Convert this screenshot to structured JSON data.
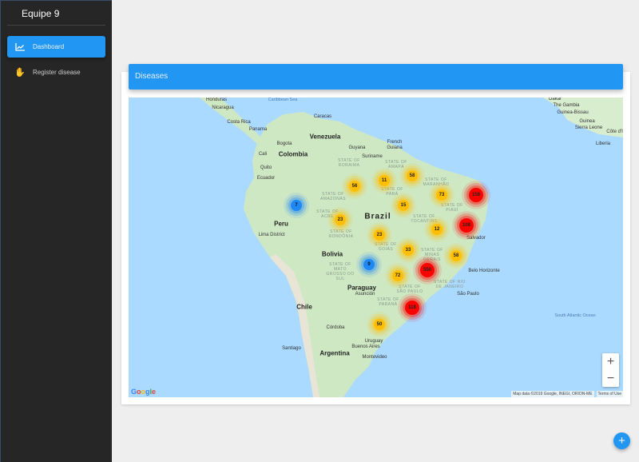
{
  "sidebar": {
    "brand": "Equipe 9",
    "items": [
      {
        "label": "Dashboard",
        "icon": "chart-line-icon",
        "active": true
      },
      {
        "label": "Register disease",
        "icon": "hand-icon",
        "active": false
      }
    ]
  },
  "card": {
    "title": "Diseases"
  },
  "map": {
    "labels": {
      "honduras": "Honduras",
      "nicaragua": "Nicaragua",
      "costa_rica": "Costa Rica",
      "panama": "Panama",
      "caribbean": "Caribbean Sea",
      "caracas": "Caracas",
      "venezuela": "Venezuela",
      "bogota": "Bogota",
      "colombia": "Colombia",
      "cali": "Cali",
      "quito": "Quito",
      "ecuador": "Ecuador",
      "guyana": "Guyana",
      "suriname": "Suriname",
      "french_guiana": "French Guiana",
      "peru": "Peru",
      "lima": "Lima District",
      "bolivia": "Bolivia",
      "brazil": "Brazil",
      "paraguay": "Paraguay",
      "asuncion": "Asunción",
      "chile": "Chile",
      "argentina": "Argentina",
      "cordoba": "Córdoba",
      "santiago": "Santiago",
      "buenos_aires": "Buenos Aires",
      "uruguay": "Uruguay",
      "montevideo": "Montevideo",
      "salvador": "Salvador",
      "belo_horizonte": "Belo Horizonte",
      "sao_paulo": "São Paulo",
      "dakar": "Dakar",
      "gambia": "The Gambia",
      "guinea_bissau": "Guinea-Bissau",
      "guinea": "Guinea",
      "sierra_leone": "Sierra Leone",
      "liberia": "Liberia",
      "cote": "Côte d'Iv",
      "atlantic": "South Atlantic Ocean",
      "amazonas": "STATE OF AMAZONAS",
      "acre": "STATE OF ACRE",
      "rondonia": "STATE OF RONDÔNIA",
      "roraima": "STATE OF RORAIMA",
      "amapa": "STATE OF AMAPÁ",
      "para": "STATE OF PARÁ",
      "maranhao": "STATE OF MARANHÃO",
      "piaui": "STATE OF PIAUÍ",
      "tocantins": "STATE OF TOCANTINS",
      "minas": "STATE OF MINAS GERAIS",
      "goias": "STATE OF GOIÁS",
      "ms": "STATE OF MATO GROSSO DO SUL",
      "sp": "STATE OF SÃO PAULO",
      "rj": "STATE OF RIO DE JANEIRO",
      "parana": "STATE OF PARANÁ"
    },
    "clusters": [
      {
        "count": "7",
        "level": "low"
      },
      {
        "count": "56",
        "level": "medium"
      },
      {
        "count": "11",
        "level": "medium"
      },
      {
        "count": "58",
        "level": "medium"
      },
      {
        "count": "73",
        "level": "medium"
      },
      {
        "count": "158",
        "level": "high"
      },
      {
        "count": "15",
        "level": "medium"
      },
      {
        "count": "23",
        "level": "medium"
      },
      {
        "count": "23",
        "level": "medium"
      },
      {
        "count": "12",
        "level": "medium"
      },
      {
        "count": "108",
        "level": "high"
      },
      {
        "count": "33",
        "level": "medium"
      },
      {
        "count": "58",
        "level": "medium"
      },
      {
        "count": "9",
        "level": "low"
      },
      {
        "count": "550",
        "level": "high"
      },
      {
        "count": "72",
        "level": "medium"
      },
      {
        "count": "118",
        "level": "high"
      },
      {
        "count": "50",
        "level": "medium"
      }
    ],
    "level_colors": {
      "low": "#1e88f5",
      "medium": "#ffbf00",
      "high": "#ff0000"
    },
    "zoom_in": "+",
    "zoom_out": "−",
    "logo": "Google",
    "attribution": "Map data ©2019 Google, INEGI, ORION-ME",
    "terms": "Terms of Use"
  },
  "fab": {
    "label": "+",
    "icon": "plus-icon"
  }
}
